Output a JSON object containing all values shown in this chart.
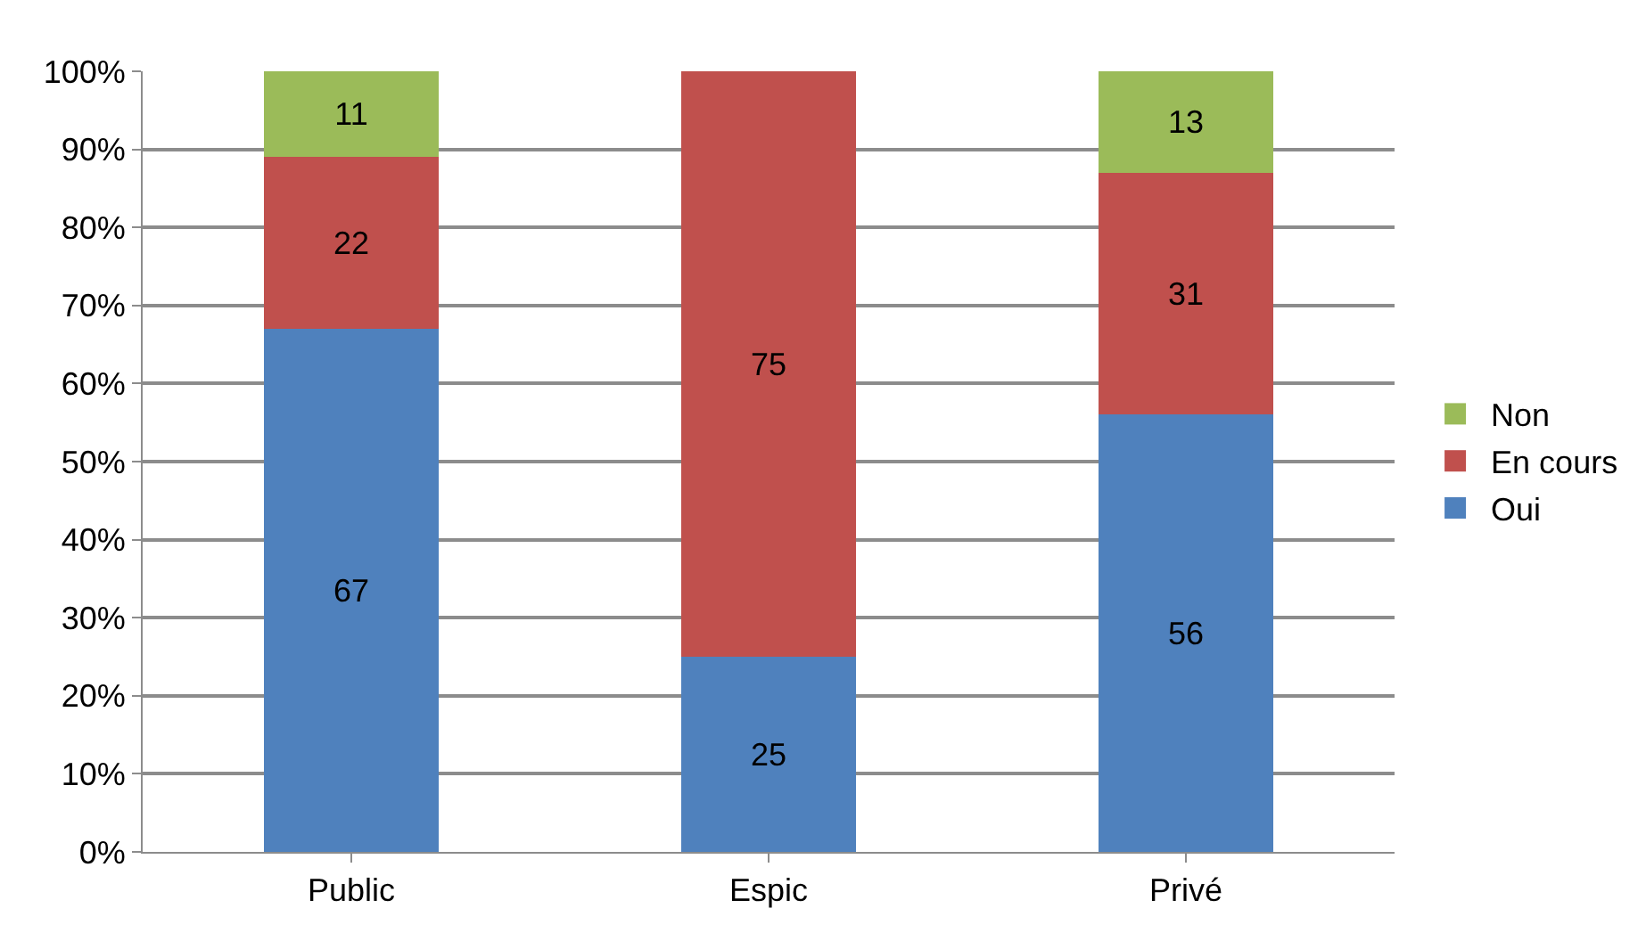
{
  "chart_data": {
    "type": "bar",
    "stacked": true,
    "categories": [
      "Public",
      "Espic",
      "Privé"
    ],
    "series": [
      {
        "name": "Oui",
        "color": "#4f81bd",
        "values": [
          67,
          25,
          56
        ]
      },
      {
        "name": "En cours",
        "color": "#c0504d",
        "values": [
          22,
          75,
          31
        ]
      },
      {
        "name": "Non",
        "color": "#9bbb59",
        "values": [
          11,
          null,
          13
        ]
      }
    ],
    "ylim": [
      0,
      100
    ],
    "yticks": [
      {
        "value": 0,
        "label": "0%"
      },
      {
        "value": 10,
        "label": "10%"
      },
      {
        "value": 20,
        "label": "20%"
      },
      {
        "value": 30,
        "label": "30%"
      },
      {
        "value": 40,
        "label": "40%"
      },
      {
        "value": 50,
        "label": "50%"
      },
      {
        "value": 60,
        "label": "60%"
      },
      {
        "value": 70,
        "label": "70%"
      },
      {
        "value": 80,
        "label": "80%"
      },
      {
        "value": 90,
        "label": "90%"
      },
      {
        "value": 100,
        "label": "100%"
      }
    ],
    "grid": "y",
    "legend": "right",
    "data_labels": true
  }
}
